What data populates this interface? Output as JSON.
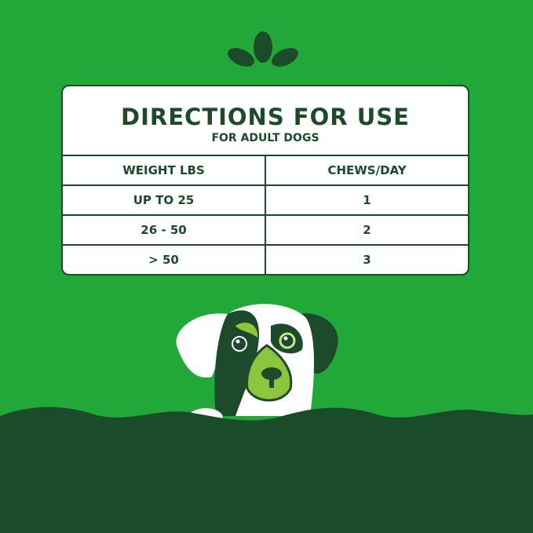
{
  "colors": {
    "background": "#21a838",
    "dark": "#1d4a2a",
    "accent": "#8cc63f"
  },
  "title": "DIRECTIONS FOR USE",
  "subtitle": "FOR ADULT DOGS",
  "headers": [
    "WEIGHT LBS",
    "CHEWS/DAY"
  ],
  "rows": [
    [
      "UP TO 25",
      "1"
    ],
    [
      "26 - 50",
      "2"
    ],
    [
      "> 50",
      "3"
    ]
  ],
  "icons": [
    "leaf-logo-icon",
    "dog-illustration"
  ]
}
